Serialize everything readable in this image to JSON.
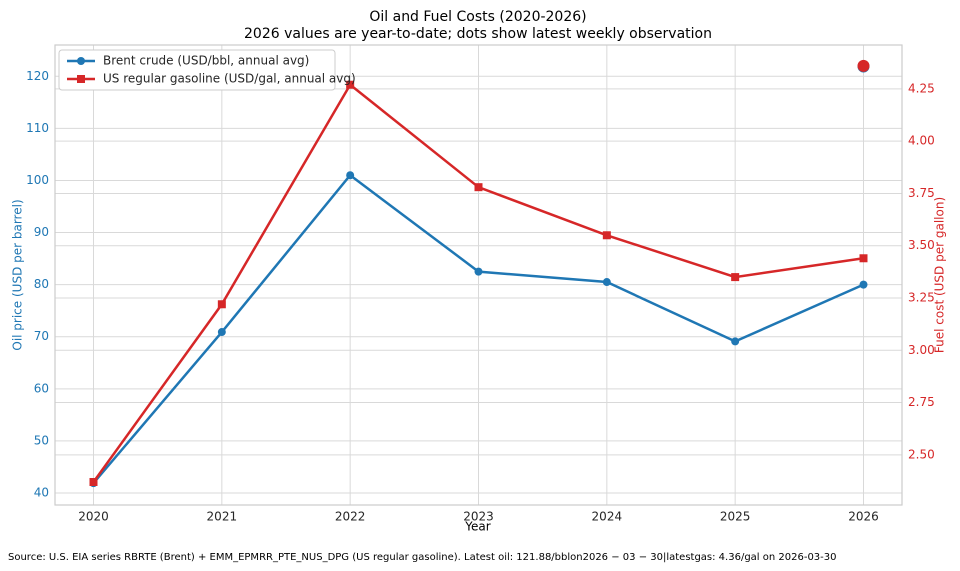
{
  "chart_data": {
    "type": "line",
    "title": "Oil and Fuel Costs (2020-2026)",
    "subtitle": "2026 values are year-to-date; dots show latest weekly observation",
    "x_label": "Year",
    "y_label": "Oil price (USD per barrel)",
    "y2_label": "Fuel cost (USD per gallon)",
    "source": "Source: U.S. EIA series RBRTE (Brent) + EMM_EPMRR_PTE_NUS_DPG (US regular gasoline). Latest oil: 121.88/bblon2026 − 03 − 30|latestgas: 4.36/gal on 2026-03-30",
    "x": [
      2020,
      2021,
      2022,
      2023,
      2024,
      2025,
      2026
    ],
    "xlim": [
      2019.7,
      2026.3
    ],
    "xticks": [
      2020,
      2021,
      2022,
      2023,
      2024,
      2025,
      2026
    ],
    "ylim": [
      37.7,
      126
    ],
    "yticks": [
      40,
      50,
      60,
      70,
      80,
      90,
      100,
      110,
      120
    ],
    "y2lim": [
      2.26,
      4.46
    ],
    "y2ticks": [
      {
        "value": 2.5,
        "label": "2.50"
      },
      {
        "value": 2.75,
        "label": "2.75"
      },
      {
        "value": 3,
        "label": "3.00"
      },
      {
        "value": 3.25,
        "label": "3.25"
      },
      {
        "value": 3.5,
        "label": "3.50"
      },
      {
        "value": 3.75,
        "label": "3.75"
      },
      {
        "value": 4,
        "label": "4.00"
      },
      {
        "value": 4.25,
        "label": "4.25"
      }
    ],
    "grid": true,
    "legend": "upper left",
    "series": [
      {
        "name": "Brent crude (USD/bbl, annual avg)",
        "color": "#1f77b4",
        "marker": "circle",
        "values": [
          41.9,
          70.9,
          101,
          82.5,
          80.5,
          69.1,
          80
        ]
      },
      {
        "name": "US regular gasoline (USD/gal, annual avg)",
        "color": "#d62728",
        "marker": "square",
        "axis": "y2",
        "values": [
          2.37,
          3.22,
          4.27,
          3.78,
          3.55,
          3.35,
          3.44
        ]
      }
    ],
    "latest": [
      {
        "color": "#1f77b4",
        "x": 2026,
        "value": 121.88
      },
      {
        "color": "#d62728",
        "x": 2026,
        "value": 4.36,
        "axis": "y2"
      }
    ]
  }
}
